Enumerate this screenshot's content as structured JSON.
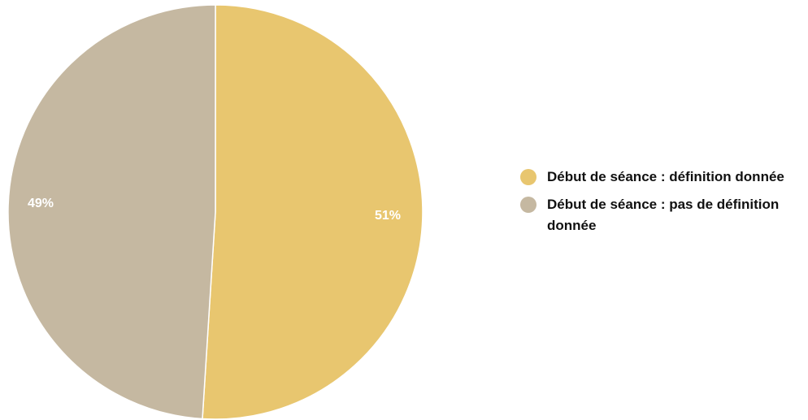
{
  "chart_data": {
    "type": "pie",
    "categories": [
      "Début de séance : définition donnée",
      "Début de séance : pas de définition donnée"
    ],
    "values": [
      51,
      49
    ],
    "value_labels": [
      "51%",
      "49%"
    ],
    "colors": [
      "#E8C66F",
      "#C5B8A1"
    ],
    "title": "",
    "legend_position": "right",
    "start_angle_deg": 0,
    "direction": "clockwise"
  },
  "legend": {
    "items": [
      {
        "label": "Début de séance : définition donnée",
        "color": "#E8C66F"
      },
      {
        "label": "Début de séance : pas de définition donnée",
        "color": "#C5B8A1"
      }
    ]
  }
}
